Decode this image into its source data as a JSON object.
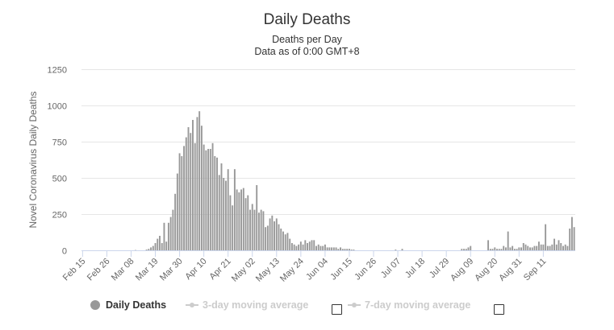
{
  "chart_data": {
    "type": "bar",
    "title": "Daily Deaths",
    "subtitle_lines": [
      "Deaths per Day",
      "Data as of 0:00 GMT+8"
    ],
    "ylabel": "Novel Coronavirus Daily Deaths",
    "ylim": [
      0,
      1250
    ],
    "y_ticks": [
      0,
      250,
      500,
      750,
      1000,
      1250
    ],
    "x_tick_labels": [
      "Feb 15",
      "Feb 26",
      "Mar 08",
      "Mar 19",
      "Mar 30",
      "Apr 10",
      "Apr 21",
      "May 02",
      "May 13",
      "May 24",
      "Jun 04",
      "Jun 15",
      "Jun 26",
      "Jul 07",
      "Jul 18",
      "Jul 29",
      "Aug 09",
      "Aug 20",
      "Aug 31",
      "Sep 11"
    ],
    "x_start_date": "2020-02-15",
    "tick_interval_days": 11,
    "grid": true,
    "legend_position": "bottom-left",
    "series": [
      {
        "name": "Daily Deaths",
        "color": "#999999",
        "values": [
          0,
          0,
          0,
          0,
          0,
          0,
          0,
          0,
          0,
          0,
          0,
          0,
          0,
          0,
          0,
          0,
          0,
          0,
          0,
          0,
          0,
          0,
          0,
          0,
          2,
          0,
          0,
          0,
          0,
          5,
          10,
          20,
          30,
          50,
          80,
          100,
          50,
          190,
          60,
          190,
          230,
          280,
          390,
          530,
          670,
          650,
          720,
          780,
          850,
          810,
          900,
          740,
          920,
          960,
          860,
          730,
          690,
          700,
          700,
          740,
          650,
          640,
          520,
          600,
          500,
          480,
          560,
          380,
          310,
          560,
          420,
          400,
          420,
          430,
          360,
          380,
          280,
          320,
          280,
          450,
          260,
          280,
          270,
          160,
          170,
          220,
          240,
          200,
          220,
          180,
          150,
          130,
          110,
          120,
          80,
          50,
          40,
          30,
          40,
          60,
          40,
          70,
          50,
          60,
          70,
          70,
          30,
          40,
          30,
          30,
          40,
          20,
          20,
          20,
          20,
          20,
          10,
          20,
          10,
          10,
          10,
          10,
          5,
          5,
          0,
          0,
          0,
          0,
          0,
          0,
          0,
          0,
          0,
          0,
          0,
          0,
          0,
          0,
          0,
          0,
          0,
          0,
          5,
          0,
          0,
          10,
          0,
          0,
          0,
          0,
          0,
          0,
          0,
          0,
          0,
          0,
          0,
          0,
          0,
          0,
          0,
          0,
          0,
          0,
          0,
          0,
          0,
          0,
          0,
          0,
          0,
          0,
          10,
          10,
          10,
          20,
          30,
          0,
          0,
          0,
          0,
          0,
          0,
          0,
          70,
          10,
          10,
          20,
          10,
          10,
          10,
          30,
          20,
          130,
          20,
          30,
          10,
          10,
          20,
          20,
          50,
          40,
          30,
          20,
          20,
          30,
          30,
          60,
          40,
          40,
          180,
          30,
          30,
          40,
          80,
          40,
          70,
          50,
          30,
          40,
          30,
          150,
          230,
          160
        ]
      },
      {
        "name": "3-day moving average",
        "visible": false
      },
      {
        "name": "7-day moving average",
        "visible": false
      }
    ]
  },
  "legend": {
    "daily_deaths": "Daily Deaths",
    "avg3": "3-day moving average",
    "avg7": "7-day moving average"
  }
}
